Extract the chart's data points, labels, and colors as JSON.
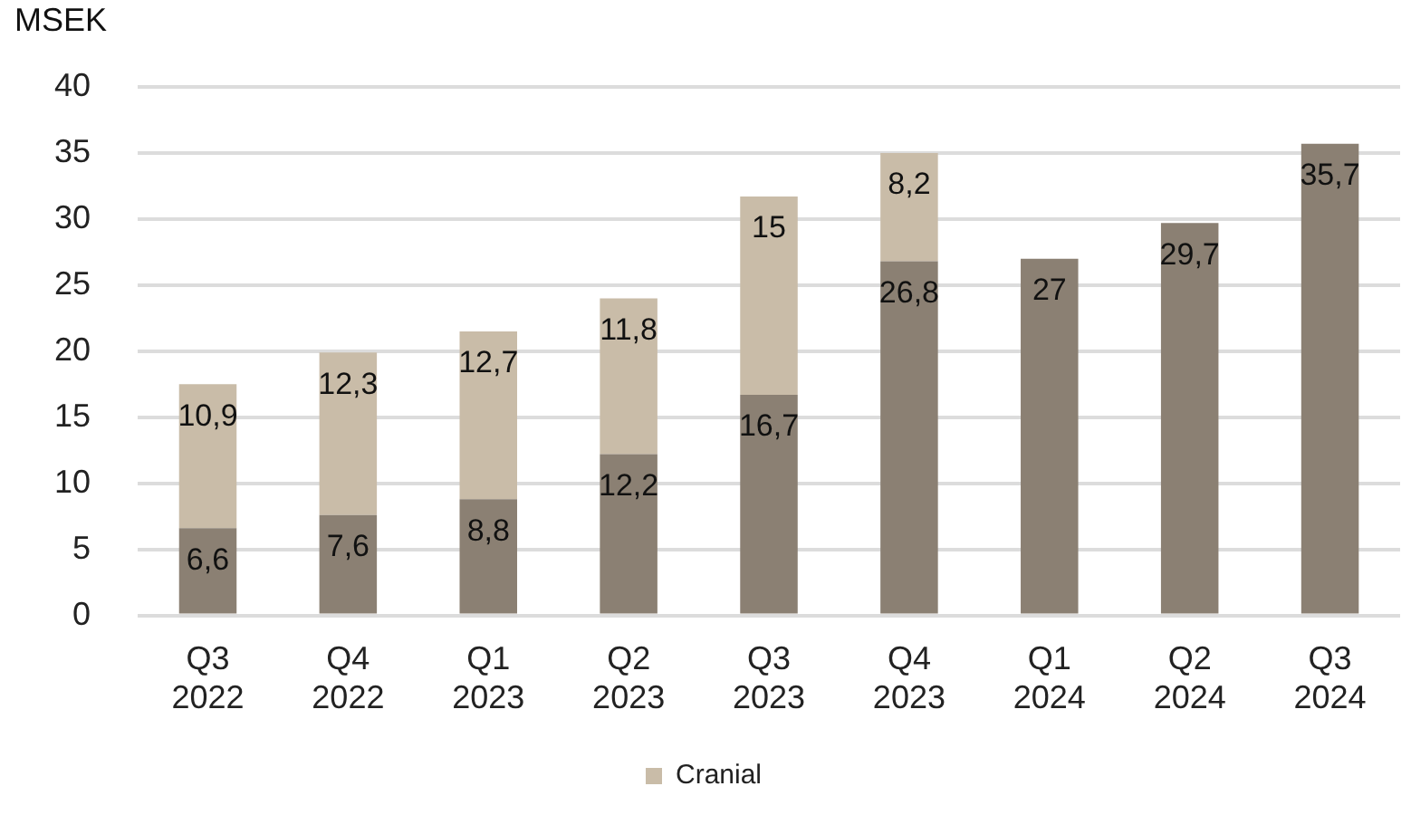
{
  "chart_data": {
    "type": "bar",
    "stacked": true,
    "ylabel": "MSEK",
    "categories": [
      "Q3 2022",
      "Q4 2022",
      "Q1 2023",
      "Q2 2023",
      "Q3 2023",
      "Q4 2023",
      "Q1 2024",
      "Q2 2024",
      "Q3 2024"
    ],
    "series": [
      {
        "color": "#8b8073",
        "values": [
          6.6,
          7.6,
          8.8,
          12.2,
          16.7,
          26.8,
          27,
          29.7,
          35.7
        ],
        "value_labels": [
          "6,6",
          "7,6",
          "8,8",
          "12,2",
          "16,7",
          "26,8",
          "27",
          "29,7",
          "35,7"
        ]
      },
      {
        "name": "Cranial",
        "color": "#c9bca8",
        "values": [
          10.9,
          12.3,
          12.7,
          11.8,
          15,
          8.2,
          null,
          null,
          null
        ],
        "value_labels": [
          "10,9",
          "12,3",
          "12,7",
          "11,8",
          "15",
          "8,2",
          null,
          null,
          null
        ]
      }
    ],
    "ylim": [
      0,
      40
    ],
    "yticks": [
      0,
      5,
      10,
      15,
      20,
      25,
      30,
      35,
      40
    ],
    "grid": "y",
    "legend": "bottom"
  }
}
